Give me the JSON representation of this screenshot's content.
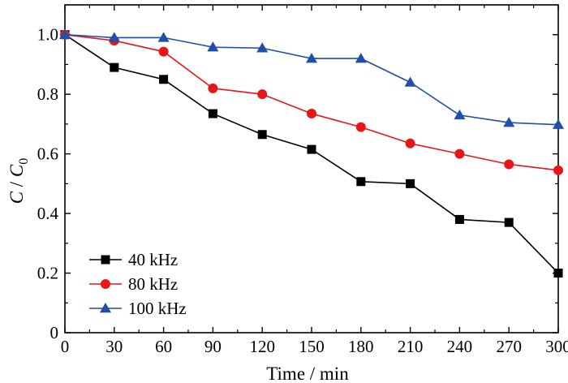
{
  "chart_data": {
    "type": "line",
    "xlabel": "Time / min",
    "ylabel_main": "C",
    "ylabel_sep": " / ",
    "ylabel_sub_base": "C",
    "ylabel_sub": "0",
    "xlim": [
      0,
      300
    ],
    "ylim": [
      0,
      1.1
    ],
    "xticks": [
      0,
      30,
      60,
      90,
      120,
      150,
      180,
      210,
      240,
      270,
      300
    ],
    "yticks": [
      0,
      0.2,
      0.4,
      0.6,
      0.8,
      1.0
    ],
    "xtick_labels": [
      "0",
      "30",
      "60",
      "90",
      "120",
      "150",
      "180",
      "210",
      "240",
      "270",
      "300"
    ],
    "ytick_labels": [
      "0",
      "0.2",
      "0.4",
      "0.6",
      "0.8",
      "1.0"
    ],
    "grid": false,
    "legend_position": "bottom-left",
    "x": [
      0,
      30,
      60,
      90,
      120,
      150,
      180,
      210,
      240,
      270,
      300
    ],
    "series": [
      {
        "name": "40 kHz",
        "color": "#000000",
        "marker": "square",
        "values": [
          1.0,
          0.89,
          0.85,
          0.735,
          0.665,
          0.615,
          0.507,
          0.5,
          0.38,
          0.37,
          0.2
        ]
      },
      {
        "name": "80 kHz",
        "color": "#e8151b",
        "marker": "circle",
        "values": [
          1.0,
          0.98,
          0.943,
          0.82,
          0.8,
          0.735,
          0.69,
          0.635,
          0.6,
          0.565,
          0.545
        ]
      },
      {
        "name": "100 kHz",
        "color": "#1f4fa8",
        "marker": "triangle",
        "values": [
          1.0,
          0.99,
          0.99,
          0.958,
          0.955,
          0.92,
          0.92,
          0.84,
          0.73,
          0.705,
          0.698
        ]
      }
    ]
  }
}
